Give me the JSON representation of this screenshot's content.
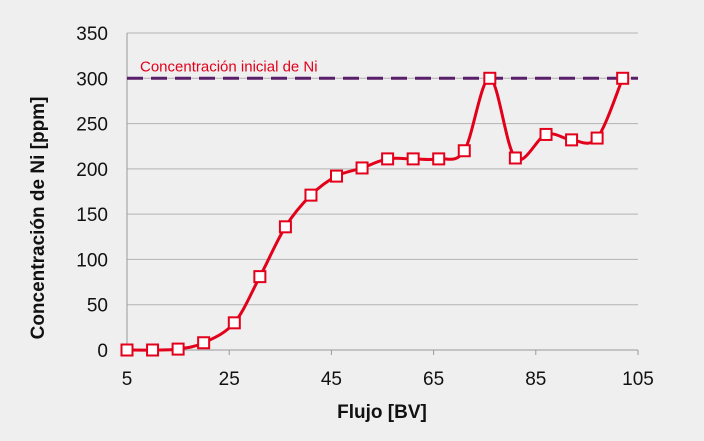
{
  "chart_data": {
    "type": "line",
    "title": "",
    "xlabel": "Flujo [BV]",
    "ylabel": "Concentración de Ni [ppm]",
    "xlim": [
      5,
      105
    ],
    "ylim": [
      0,
      350
    ],
    "xticks": [
      5,
      25,
      45,
      65,
      85,
      105
    ],
    "yticks": [
      0,
      50,
      100,
      150,
      200,
      250,
      300,
      350
    ],
    "grid": "horizontal",
    "series": [
      {
        "name": "",
        "color": "#e3001b",
        "marker": "open-square",
        "smooth": true,
        "x": [
          5,
          10,
          15,
          20,
          26,
          31,
          36,
          41,
          46,
          51,
          56,
          61,
          66,
          71,
          76,
          81,
          87,
          92,
          97,
          102
        ],
        "y": [
          0,
          0,
          1,
          8,
          30,
          81,
          136,
          171,
          192,
          201,
          211,
          211,
          211,
          220,
          300,
          212,
          238,
          232,
          234,
          300
        ]
      }
    ],
    "reference_line": {
      "label": "Concentración inicial de Ni",
      "y": 300,
      "color": "#5a1f6a",
      "style": "dashed"
    }
  }
}
